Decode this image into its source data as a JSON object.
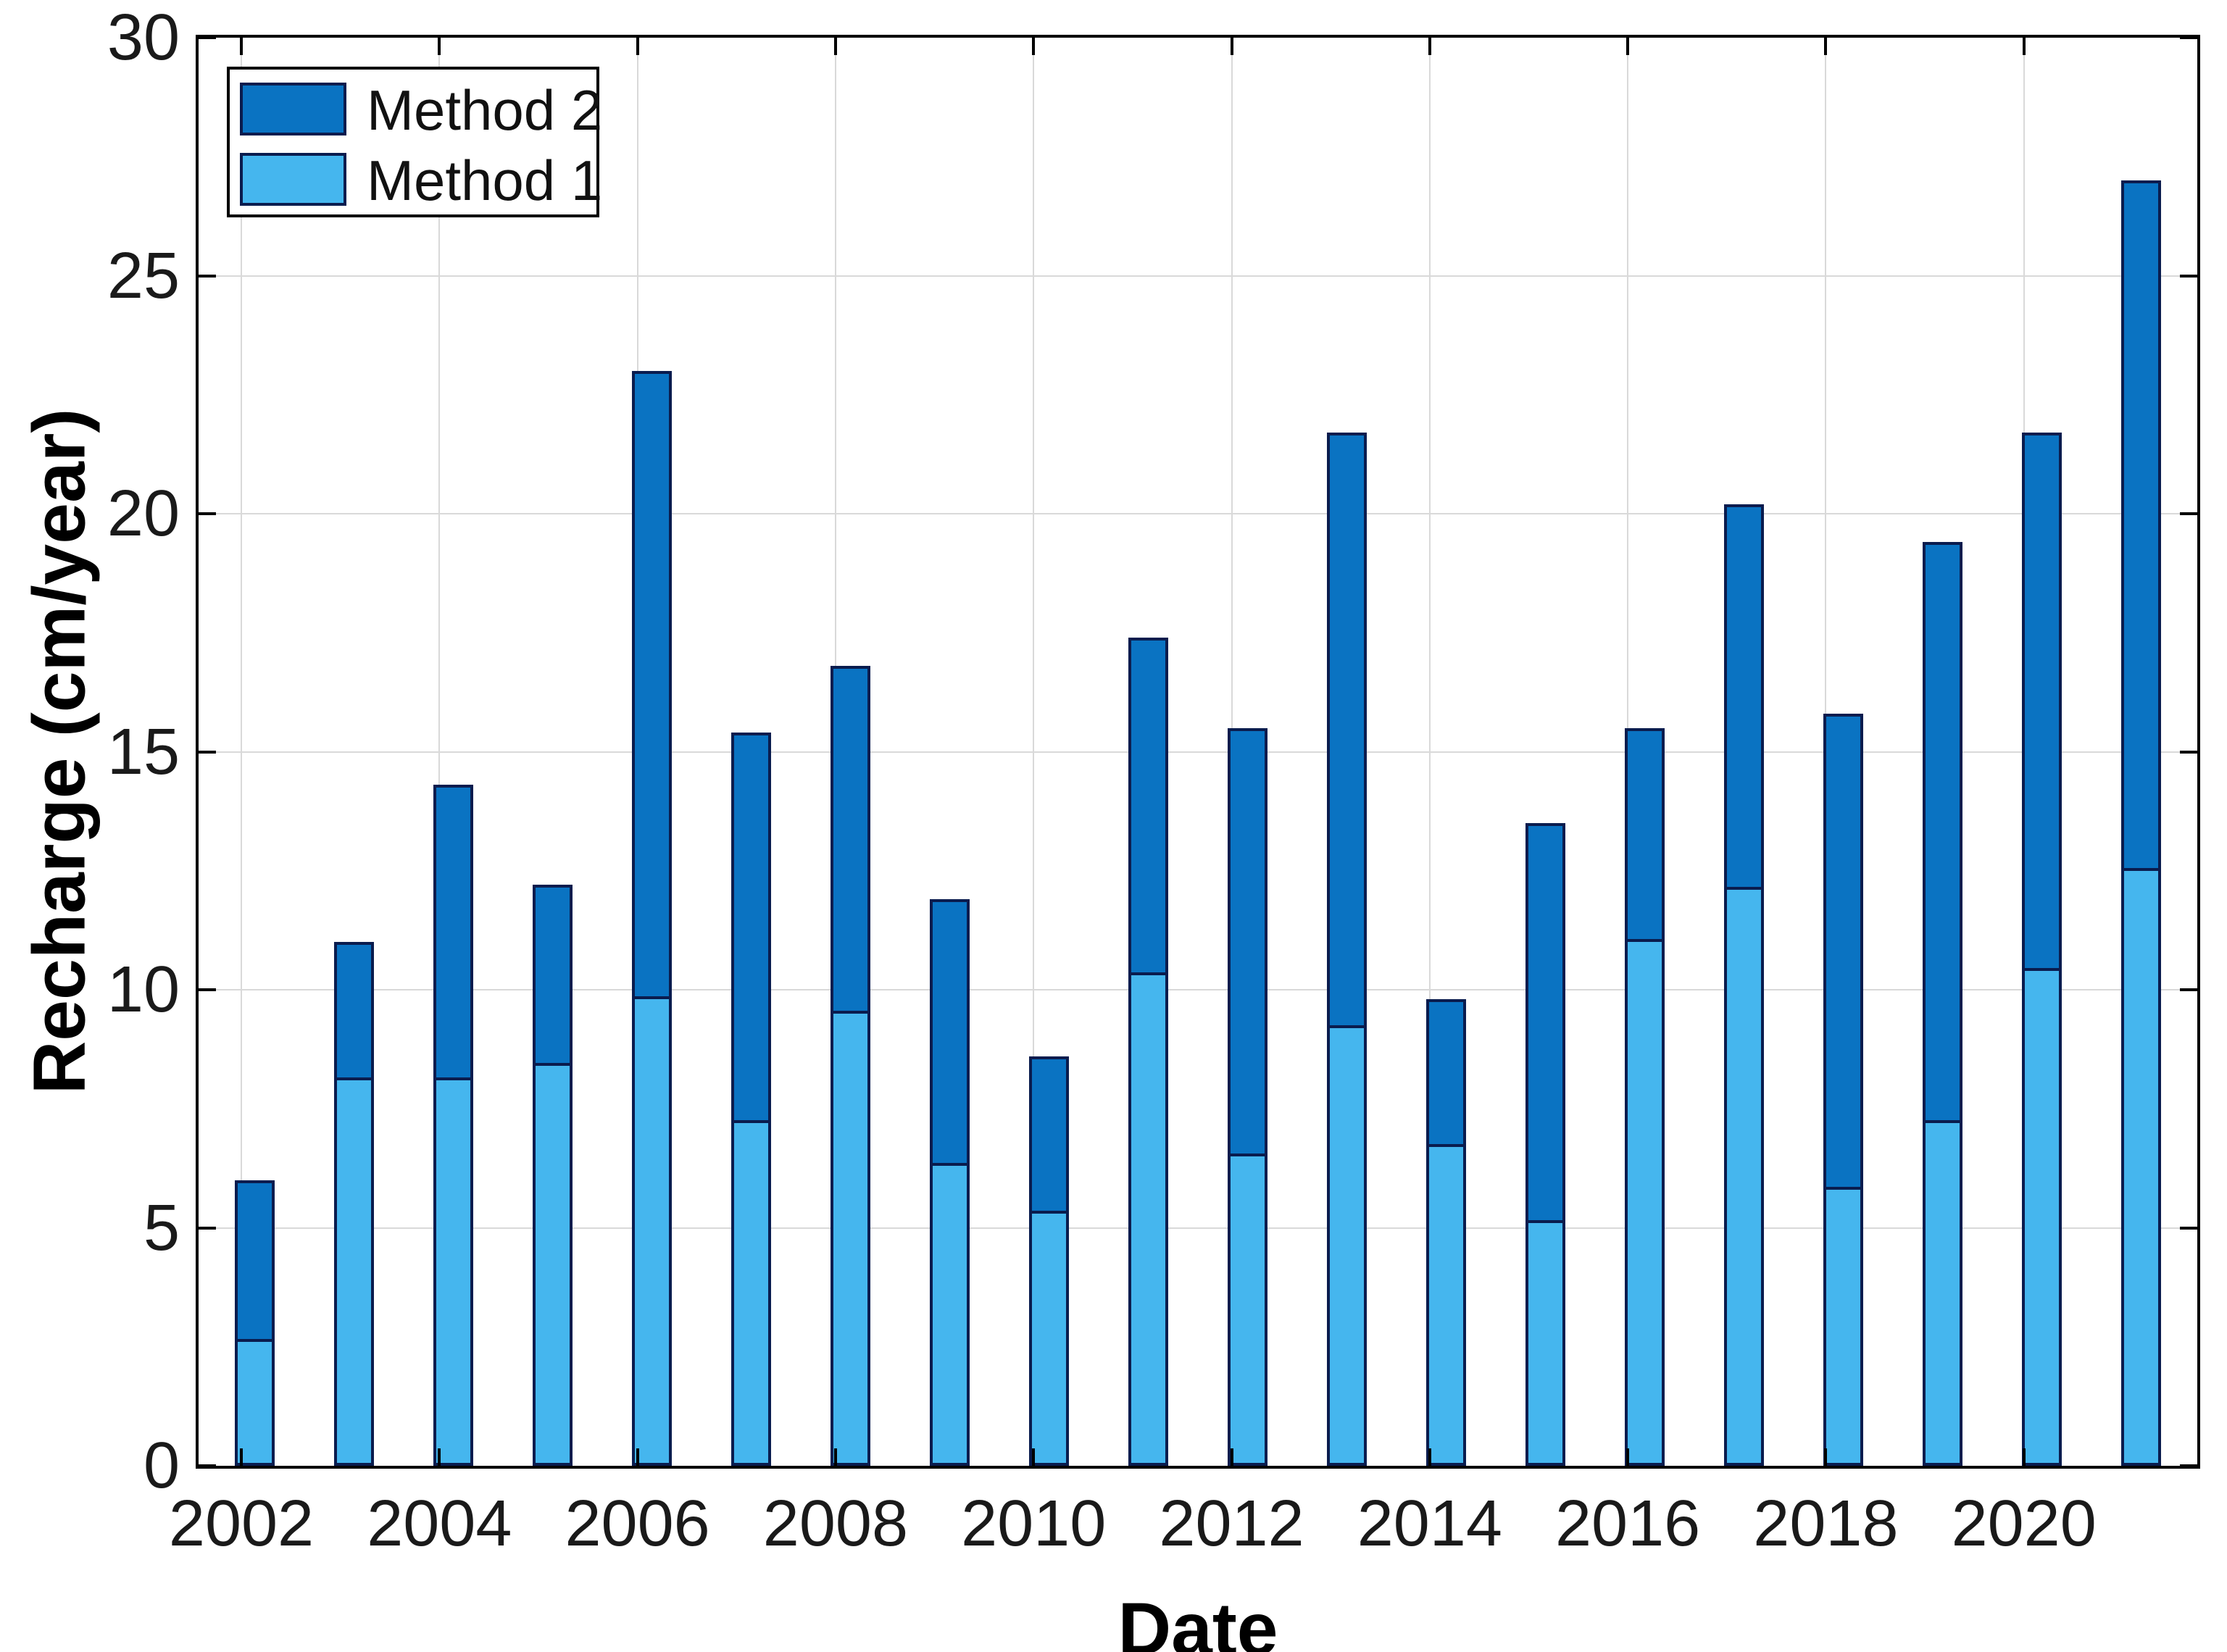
{
  "chart_data": {
    "type": "bar",
    "stacked": true,
    "title": "",
    "xlabel": "Date",
    "ylabel": "Recharge (cm/year)",
    "categories": [
      2002,
      2003,
      2004,
      2005,
      2006,
      2007,
      2008,
      2009,
      2010,
      2011,
      2012,
      2013,
      2014,
      2015,
      2016,
      2017,
      2018,
      2019,
      2020,
      2021
    ],
    "series": [
      {
        "name": "Method 1",
        "color": "#45b6ee",
        "values": [
          2.6,
          8.1,
          8.1,
          8.4,
          9.8,
          7.2,
          9.5,
          6.3,
          5.3,
          10.3,
          6.5,
          9.2,
          6.7,
          5.1,
          11.0,
          12.1,
          5.8,
          7.2,
          10.4,
          12.5
        ]
      },
      {
        "name": "Method 2",
        "color": "#0a73c2",
        "values": [
          3.4,
          2.9,
          6.2,
          3.8,
          13.2,
          8.2,
          7.3,
          5.6,
          3.3,
          7.1,
          9.0,
          12.5,
          3.1,
          8.4,
          4.5,
          8.1,
          10.0,
          12.2,
          11.3,
          14.5
        ]
      }
    ],
    "totals": [
      6.0,
      11.0,
      14.3,
      12.2,
      23.0,
      15.4,
      16.8,
      11.9,
      8.6,
      17.4,
      15.5,
      21.7,
      9.8,
      13.5,
      15.5,
      20.2,
      15.8,
      19.4,
      21.7,
      27.0
    ],
    "ylim": [
      0,
      30
    ],
    "yticks": [
      0,
      5,
      10,
      15,
      20,
      25,
      30
    ],
    "xticks": [
      2002,
      2004,
      2006,
      2008,
      2010,
      2012,
      2014,
      2016,
      2018,
      2020
    ],
    "grid": true,
    "legend_position": "top-left",
    "bar_edge_color": "#0a1c4e",
    "grid_color": "#d9d9d9",
    "axis_color": "#000000",
    "tick_label_color": "#1a1a1a",
    "background": "#ffffff"
  },
  "legend": {
    "items": [
      {
        "label": "Method 2",
        "series": "Method 2"
      },
      {
        "label": "Method 1",
        "series": "Method 1"
      }
    ]
  }
}
